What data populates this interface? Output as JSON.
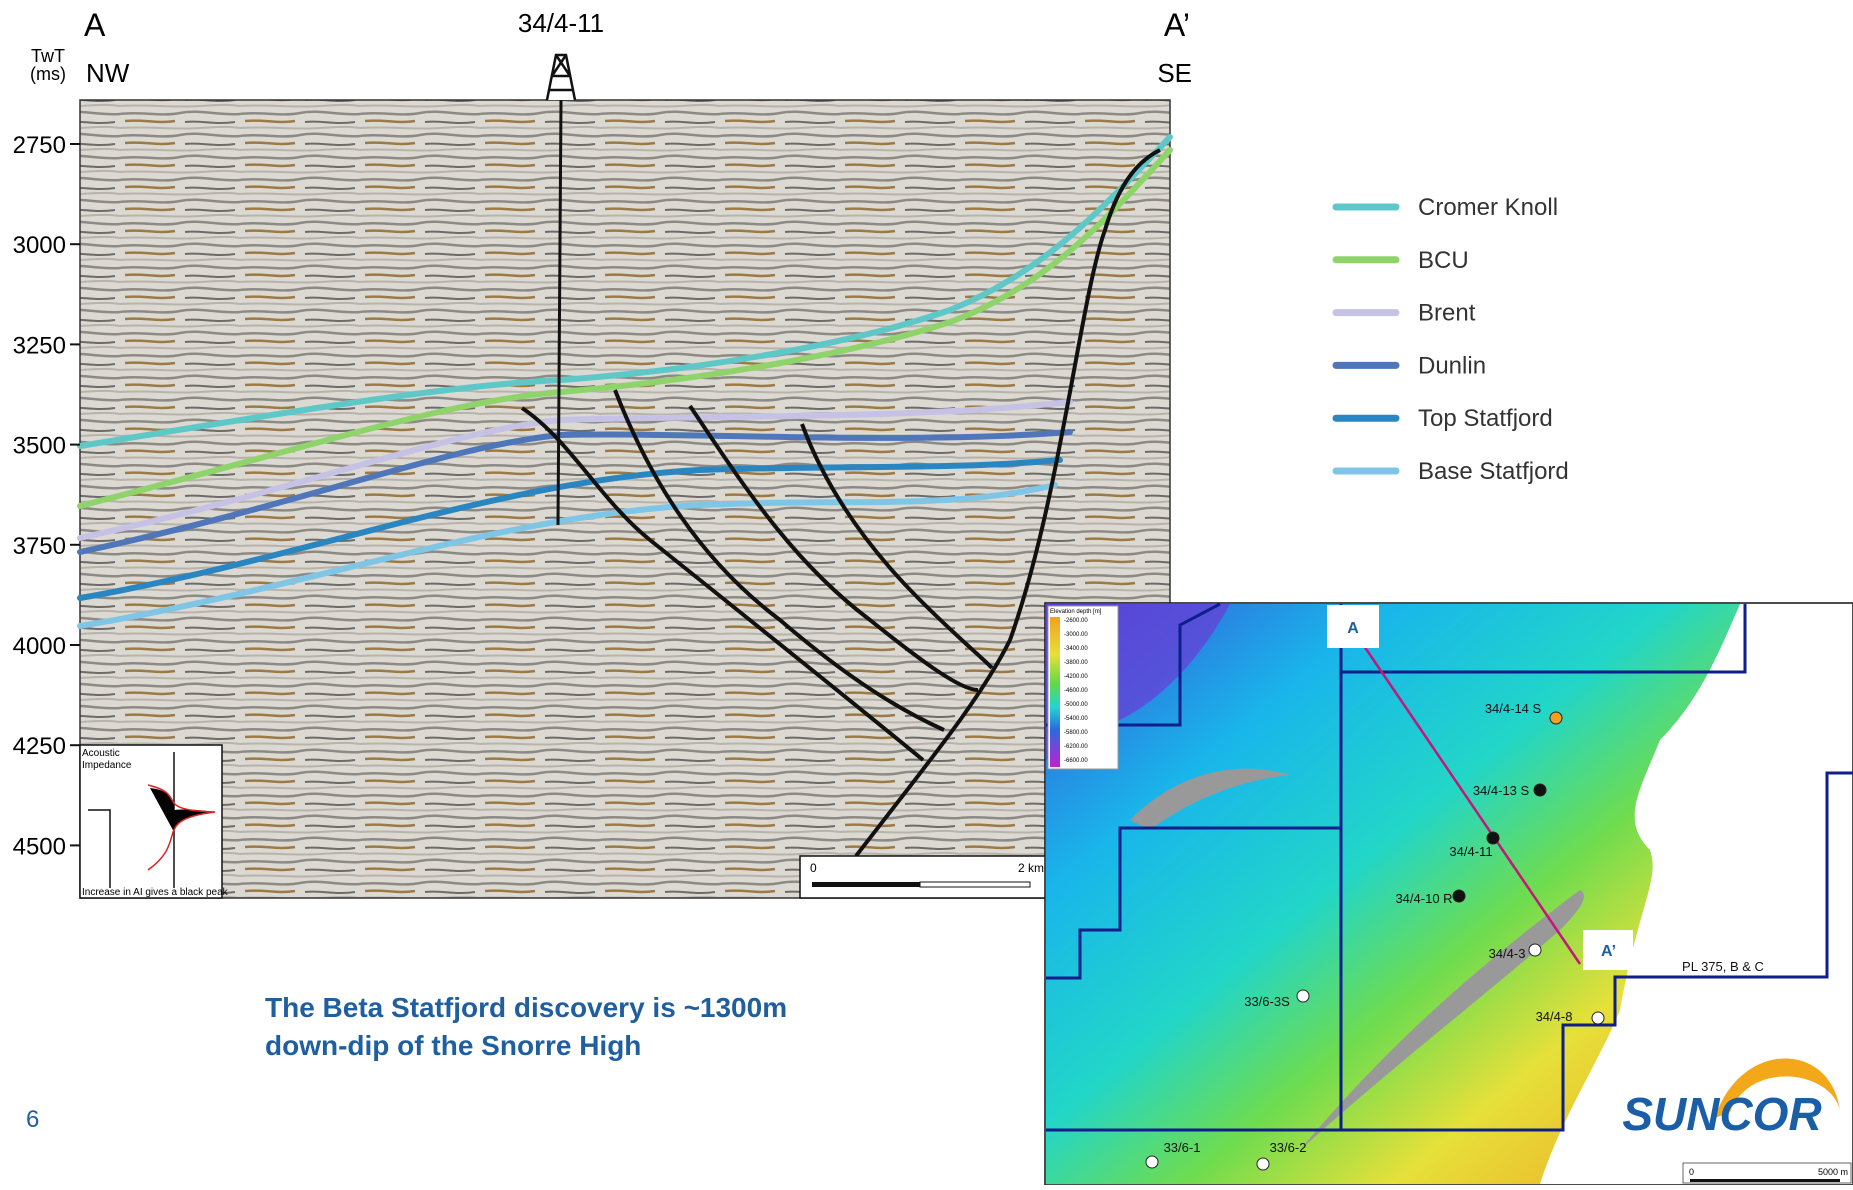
{
  "section": {
    "left_label": "A",
    "well_label": "34/4-11",
    "right_label": "A’",
    "axis_label": "TwT\n(ms)",
    "left_direction": "NW",
    "right_direction": "SE",
    "time_ticks": [
      "2750",
      "3000",
      "3250",
      "3500",
      "3750",
      "4000",
      "4250",
      "4500"
    ],
    "scale_start": "0",
    "scale_end": "2 km",
    "impedance_title": "Acoustic\nImpedance",
    "impedance_note": "Increase in AI gives a black peak"
  },
  "legend": [
    {
      "label": "Cromer Knoll",
      "color": "#5ec8c8"
    },
    {
      "label": "BCU",
      "color": "#8fd46a"
    },
    {
      "label": "Brent",
      "color": "#c5c2e6"
    },
    {
      "label": "Dunlin",
      "color": "#4f76b8"
    },
    {
      "label": "Top Statfjord",
      "color": "#2a86c0"
    },
    {
      "label": "Base Statfjord",
      "color": "#7fc6e6"
    }
  ],
  "caption": "The Beta Statfjord discovery is ~1300m\ndown-dip of the Snorre High",
  "page_number": "6",
  "map": {
    "legend_title": "Elevation depth [m]",
    "legend_values": [
      "-2600.00",
      "-3000.00",
      "-3400.00",
      "-3800.00",
      "-4200.00",
      "-4600.00",
      "-5000.00",
      "-5400.00",
      "-5800.00",
      "-6200.00",
      "-6600.00"
    ],
    "section_start": "A",
    "section_end": "A’",
    "wells": [
      "34/4-14 S",
      "34/4-13 S",
      "34/4-11",
      "34/4-10 R",
      "34/4-3",
      "34/4-8",
      "33/6-3S",
      "33/6-1",
      "33/6-2"
    ],
    "licence": "PL 375, B & C",
    "scale_start": "0",
    "scale_end": "5000 m"
  },
  "logo": "SUNCOR"
}
